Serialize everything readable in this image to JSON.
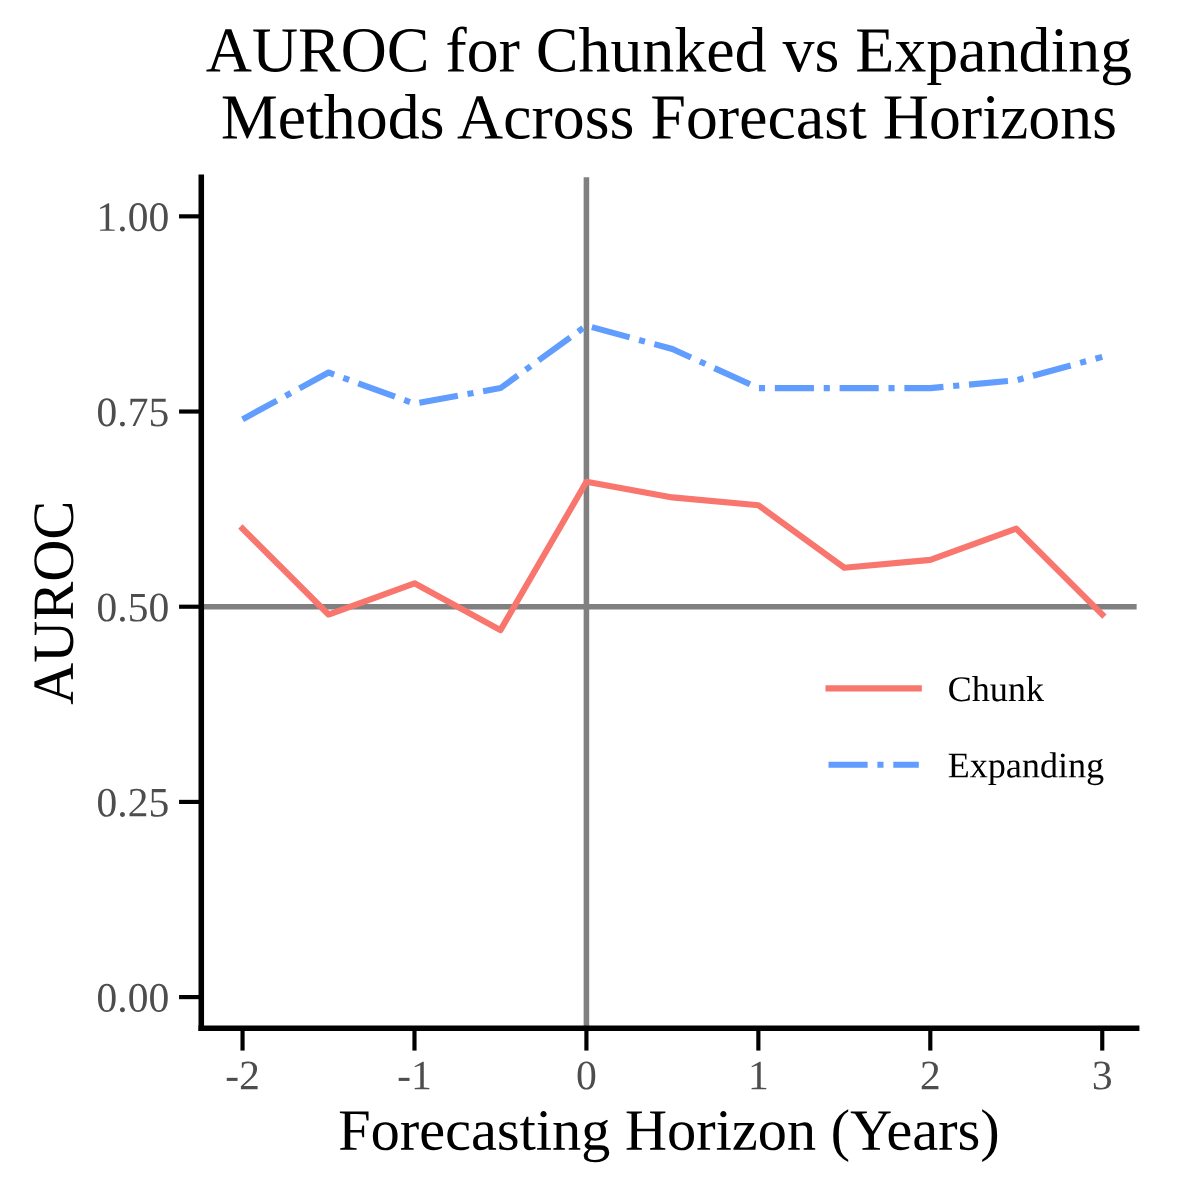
{
  "chart_data": {
    "type": "line",
    "title": "AUROC for Chunked vs Expanding\nMethods Across Forecast Horizons",
    "xlabel": "Forecasting Horizon (Years)",
    "ylabel": "AUROC",
    "x": [
      -2,
      -1.5,
      -1,
      -0.5,
      0,
      0.5,
      1,
      1.5,
      2,
      2.5,
      3
    ],
    "series": [
      {
        "name": "Chunk",
        "color": "#f8766d",
        "line_style": "solid",
        "values": [
          0.6,
          0.49,
          0.53,
          0.47,
          0.66,
          0.64,
          0.63,
          0.55,
          0.56,
          0.6,
          0.49
        ]
      },
      {
        "name": "Expanding",
        "color": "#619cff",
        "line_style": "dashdot",
        "values": [
          0.74,
          0.8,
          0.76,
          0.78,
          0.86,
          0.83,
          0.78,
          0.78,
          0.78,
          0.79,
          0.82
        ]
      }
    ],
    "xlim": [
      -2.24,
      3.2
    ],
    "ylim": [
      -0.04,
      1.05
    ],
    "xticks": [
      {
        "value": -2,
        "label": "-2"
      },
      {
        "value": -1,
        "label": "-1"
      },
      0,
      1,
      2,
      3
    ],
    "yticks": [
      {
        "value": 0,
        "label": "0.00"
      },
      {
        "value": 0.25,
        "label": "0.25"
      },
      {
        "value": 0.5,
        "label": "0.50"
      },
      {
        "value": 0.75,
        "label": "0.75"
      },
      {
        "value": 1,
        "label": "1.00"
      }
    ],
    "ref_lines": [
      {
        "axis": "x",
        "value": 0,
        "color": "#808080"
      },
      {
        "axis": "y",
        "value": 0.5,
        "color": "#808080"
      }
    ],
    "grid": false,
    "legend": "right"
  }
}
